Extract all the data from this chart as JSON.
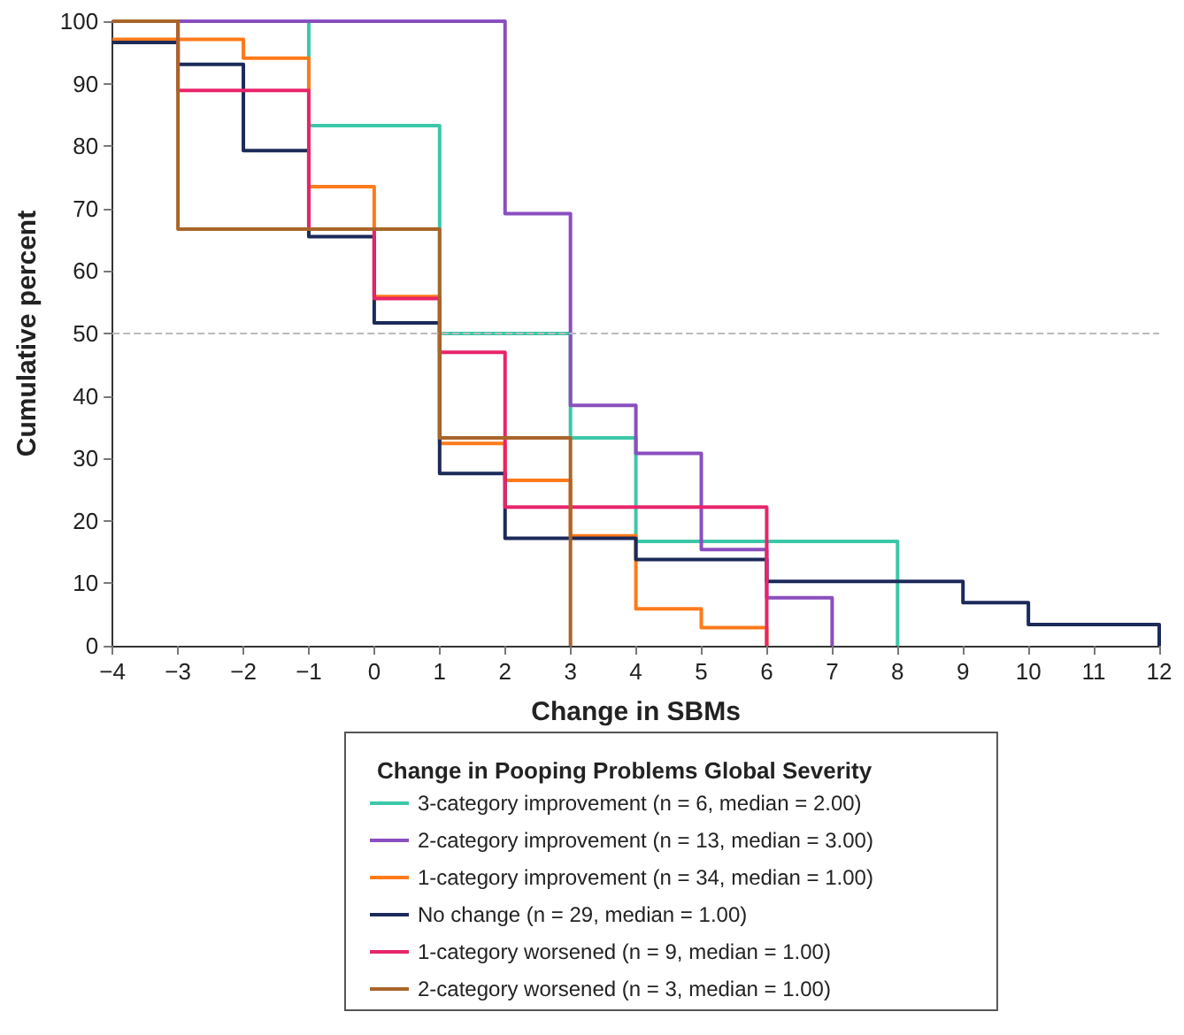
{
  "chart_data": {
    "type": "step",
    "xlabel": "Change in SBMs",
    "ylabel": "Cumulative percent",
    "legend_title": "Change in Pooping Problems Global Severity",
    "legend": "bottom",
    "line_style": "solid",
    "xlim": [
      -4,
      12
    ],
    "xticks": [
      -4,
      -3,
      -2,
      -1,
      0,
      1,
      2,
      3,
      4,
      5,
      6,
      7,
      8,
      9,
      10,
      11,
      12
    ],
    "ylim": [
      0,
      100
    ],
    "yticks": [
      0,
      10,
      20,
      30,
      40,
      50,
      60,
      70,
      80,
      90,
      100
    ],
    "ref_lines": [
      {
        "axis": "y",
        "value": 50,
        "label": null,
        "color": "#bbbbbb",
        "line_style": "dashed"
      }
    ],
    "series": [
      {
        "name": "3-category improvement (n = 6, median = 2.00)",
        "color": "#3cc8a8",
        "x": [
          -4,
          -1,
          1,
          3,
          4,
          8
        ],
        "values": [
          100,
          83.3,
          50,
          33.3,
          16.7,
          0
        ]
      },
      {
        "name": "2-category improvement (n = 13, median = 3.00)",
        "color": "#8a4fbf",
        "x": [
          -4,
          2,
          3,
          4,
          5,
          6,
          7
        ],
        "values": [
          100,
          69.2,
          38.5,
          30.8,
          15.4,
          7.7,
          0
        ]
      },
      {
        "name": "1-category improvement (n = 34, median = 1.00)",
        "color": "#ff7a1a",
        "x": [
          -4,
          -2,
          -1,
          0,
          1,
          2,
          3,
          4,
          5,
          6
        ],
        "values": [
          97.1,
          94.1,
          73.5,
          55.9,
          32.4,
          26.5,
          17.6,
          5.9,
          2.9,
          0
        ]
      },
      {
        "name": "No change (n = 29, median = 1.00)",
        "color": "#1c2a5a",
        "x": [
          -4,
          -3,
          -2,
          -1,
          0,
          1,
          2,
          4,
          6,
          9,
          10,
          12
        ],
        "values": [
          96.6,
          93.1,
          79.3,
          65.5,
          51.7,
          27.6,
          17.2,
          13.8,
          10.3,
          6.9,
          3.4,
          0
        ]
      },
      {
        "name": "1-category worsened (n = 9, median = 1.00)",
        "color": "#e8246a",
        "x": [
          -4,
          -3,
          -1,
          0,
          1,
          2,
          6
        ],
        "values": [
          100,
          88.9,
          66.7,
          55.6,
          47,
          22.2,
          0
        ]
      },
      {
        "name": "2-category worsened (n = 3, median = 1.00)",
        "color": "#a8652a",
        "x": [
          -4,
          -3,
          1,
          3
        ],
        "values": [
          100,
          66.7,
          33.3,
          0
        ]
      }
    ]
  }
}
